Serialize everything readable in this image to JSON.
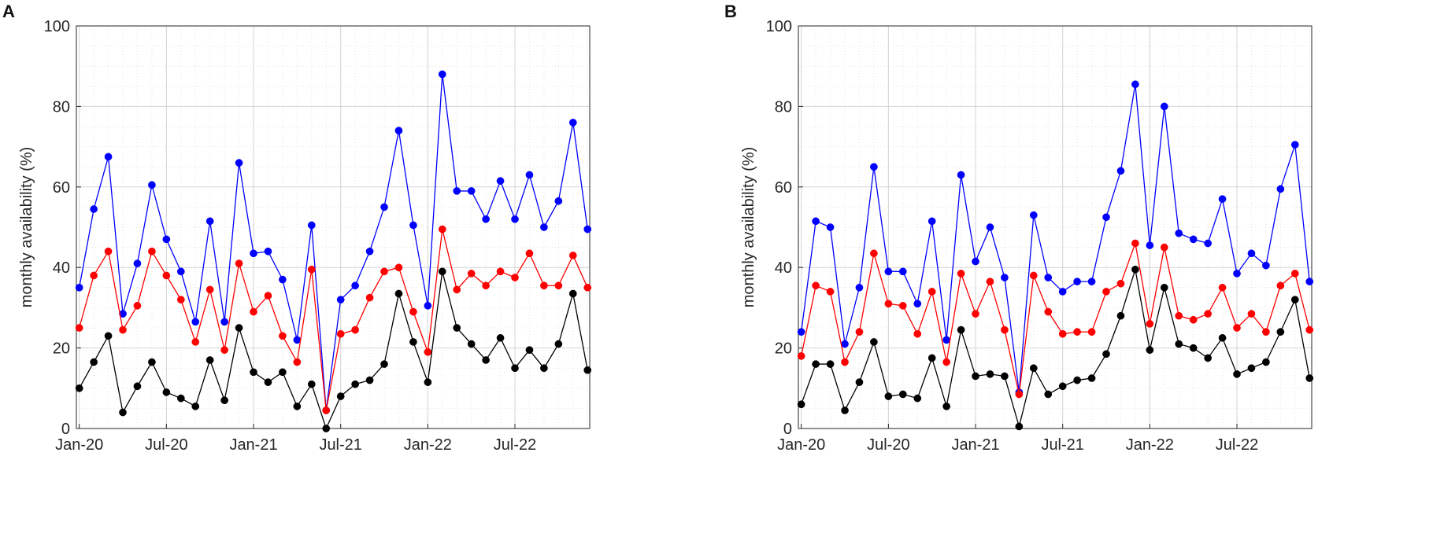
{
  "colors": {
    "series_blue": "#0000ff",
    "series_red": "#ff0000",
    "series_black": "#000000",
    "grid": "#d4d4d4"
  },
  "chart_data": [
    {
      "panel_label": "A",
      "type": "line",
      "ylabel": "monthly availability (%)",
      "xlabel": "",
      "ylim": [
        0,
        100
      ],
      "yticks": [
        0,
        20,
        40,
        60,
        80,
        100
      ],
      "xlim": [
        0,
        35
      ],
      "xticks": [
        {
          "index": 0,
          "label": "Jan-20"
        },
        {
          "index": 6,
          "label": "Jul-20"
        },
        {
          "index": 12,
          "label": "Jan-21"
        },
        {
          "index": 18,
          "label": "Jul-21"
        },
        {
          "index": 24,
          "label": "Jan-22"
        },
        {
          "index": 30,
          "label": "Jul-22"
        }
      ],
      "x": [
        0,
        1,
        2,
        3,
        4,
        5,
        6,
        7,
        8,
        9,
        10,
        11,
        12,
        13,
        14,
        15,
        16,
        17,
        18,
        19,
        20,
        21,
        22,
        23,
        24,
        25,
        26,
        27,
        28,
        29,
        30,
        31,
        32,
        33,
        34,
        35
      ],
      "series": [
        {
          "name": "blue",
          "color": "#0000ff",
          "values": [
            35,
            54.5,
            67.5,
            28.5,
            41,
            60.5,
            47,
            39,
            26.5,
            51.5,
            26.5,
            66,
            43.5,
            44,
            37,
            22,
            50.5,
            4.5,
            32,
            35.5,
            44,
            55,
            74,
            50.5,
            30.5,
            88,
            59,
            59,
            52,
            61.5,
            52,
            63,
            50,
            56.5,
            76,
            49.5
          ]
        },
        {
          "name": "red",
          "color": "#ff0000",
          "values": [
            25,
            38,
            44,
            24.5,
            30.5,
            44,
            38,
            32,
            21.5,
            34.5,
            19.5,
            41,
            29,
            33,
            23,
            16.5,
            39.5,
            4.5,
            23.5,
            24.5,
            32.5,
            39,
            40,
            29,
            19,
            49.5,
            34.5,
            38.5,
            35.5,
            39,
            37.5,
            43.5,
            35.5,
            35.5,
            43,
            35
          ]
        },
        {
          "name": "black",
          "color": "#000000",
          "values": [
            10,
            16.5,
            23,
            4,
            10.5,
            16.5,
            9,
            7.5,
            5.5,
            17,
            7,
            25,
            14,
            11.5,
            14,
            5.5,
            11,
            0,
            8,
            11,
            12,
            16,
            33.5,
            21.5,
            11.5,
            39,
            25,
            21,
            17,
            22.5,
            15,
            19.5,
            15,
            21,
            33.5,
            14.5
          ]
        }
      ]
    },
    {
      "panel_label": "B",
      "type": "line",
      "ylabel": "monthly availability (%)",
      "xlabel": "",
      "ylim": [
        0,
        100
      ],
      "yticks": [
        0,
        20,
        40,
        60,
        80,
        100
      ],
      "xlim": [
        0,
        35
      ],
      "xticks": [
        {
          "index": 0,
          "label": "Jan-20"
        },
        {
          "index": 6,
          "label": "Jul-20"
        },
        {
          "index": 12,
          "label": "Jan-21"
        },
        {
          "index": 18,
          "label": "Jul-21"
        },
        {
          "index": 24,
          "label": "Jan-22"
        },
        {
          "index": 30,
          "label": "Jul-22"
        }
      ],
      "x": [
        0,
        1,
        2,
        3,
        4,
        5,
        6,
        7,
        8,
        9,
        10,
        11,
        12,
        13,
        14,
        15,
        16,
        17,
        18,
        19,
        20,
        21,
        22,
        23,
        24,
        25,
        26,
        27,
        28,
        29,
        30,
        31,
        32,
        33,
        34,
        35
      ],
      "series": [
        {
          "name": "blue",
          "color": "#0000ff",
          "values": [
            24,
            51.5,
            50,
            21,
            35,
            65,
            39,
            39,
            31,
            51.5,
            22,
            63,
            41.5,
            50,
            37.5,
            9,
            53,
            37.5,
            34,
            36.5,
            36.5,
            52.5,
            64,
            85.5,
            45.5,
            80,
            48.5,
            47,
            46,
            57,
            38.5,
            43.5,
            40.5,
            59.5,
            70.5,
            36.5
          ]
        },
        {
          "name": "red",
          "color": "#ff0000",
          "values": [
            18,
            35.5,
            34,
            16.5,
            24,
            43.5,
            31,
            30.5,
            23.5,
            34,
            16.5,
            38.5,
            28.5,
            36.5,
            24.5,
            8.5,
            38,
            29,
            23.5,
            24,
            24,
            34,
            36,
            46,
            26,
            45,
            28,
            27,
            28.5,
            35,
            25,
            28.5,
            24,
            35.5,
            38.5,
            24.5
          ]
        },
        {
          "name": "black",
          "color": "#000000",
          "values": [
            6,
            16,
            16,
            4.5,
            11.5,
            21.5,
            8,
            8.5,
            7.5,
            17.5,
            5.5,
            24.5,
            13,
            13.5,
            13,
            0.5,
            15,
            8.5,
            10.5,
            12,
            12.5,
            18.5,
            28,
            39.5,
            19.5,
            35,
            21,
            20,
            17.5,
            22.5,
            13.5,
            15,
            16.5,
            24,
            32,
            12.5
          ]
        }
      ]
    }
  ]
}
